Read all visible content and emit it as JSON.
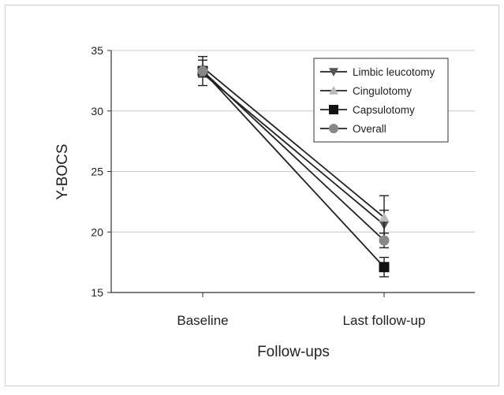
{
  "chart_data": {
    "type": "line",
    "title": "",
    "xlabel": "Follow-ups",
    "ylabel": "Y-BOCS",
    "categories": [
      "Baseline",
      "Last follow-up"
    ],
    "ylim": [
      15,
      35
    ],
    "yticks": [
      15,
      20,
      25,
      30,
      35
    ],
    "grid": "horizontal",
    "legend_position": "top-right",
    "series": [
      {
        "name": "Limbic leucotomy",
        "values": [
          33.1,
          20.6
        ],
        "errors": [
          0.3,
          1.2
        ],
        "marker": "triangle-down",
        "color": "#555555"
      },
      {
        "name": "Cingulotomy",
        "values": [
          33.6,
          21.2
        ],
        "errors": [
          0.6,
          1.8
        ],
        "marker": "triangle-up",
        "color": "#bbbbbb"
      },
      {
        "name": "Capsulotomy",
        "values": [
          33.3,
          17.1
        ],
        "errors": [
          1.2,
          0.8
        ],
        "marker": "square",
        "color": "#111111"
      },
      {
        "name": "Overall",
        "values": [
          33.3,
          19.3
        ],
        "errors": [
          0.3,
          0.6
        ],
        "marker": "circle",
        "color": "#888888"
      }
    ]
  }
}
